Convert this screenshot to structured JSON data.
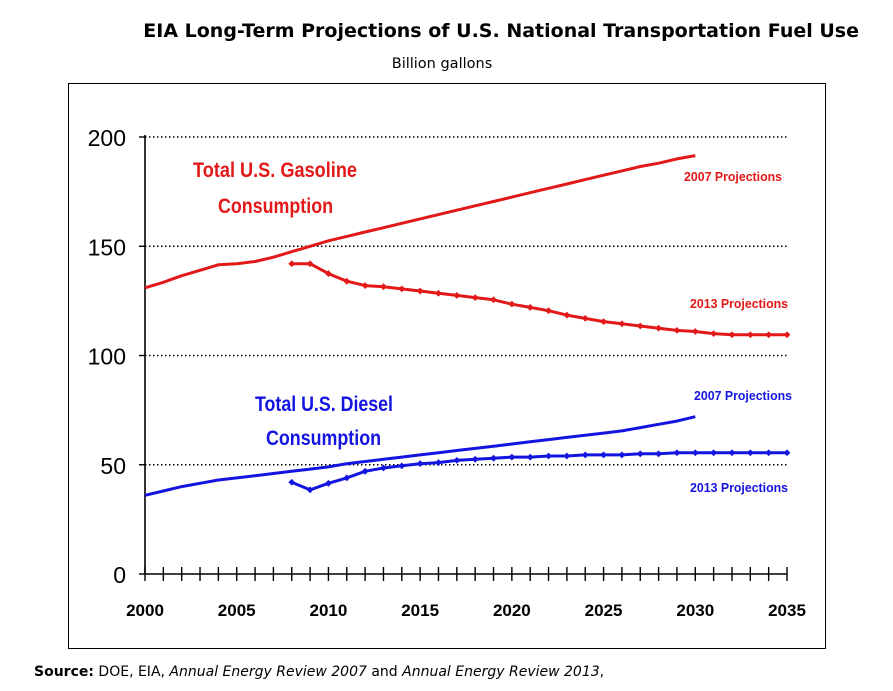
{
  "chart_data": {
    "type": "line",
    "title": "EIA Long-Term Projections of U.S. National Transportation Fuel Use",
    "subtitle": "Billion gallons",
    "xlabel": "",
    "ylabel": "",
    "xlim": [
      2000,
      2035
    ],
    "ylim": [
      0,
      200
    ],
    "x_ticks": [
      "2000",
      "2005",
      "2010",
      "2015",
      "2020",
      "2025",
      "2030",
      "2035"
    ],
    "y_ticks": [
      "0",
      "50",
      "100",
      "150",
      "200"
    ],
    "grid": "horizontal dotted",
    "colors": {
      "gasoline": "#e31818",
      "diesel": "#1414e0"
    },
    "group_labels": [
      {
        "text": [
          "Total U.S. Gasoline",
          "Consumption"
        ],
        "color": "#e31818"
      },
      {
        "text": [
          "Total U.S. Diesel",
          "Consumption"
        ],
        "color": "#1414e0"
      }
    ],
    "series": [
      {
        "name": "2007 Projections",
        "fuel": "gasoline",
        "color": "#e31818",
        "markers": false,
        "x": [
          2000,
          2001,
          2002,
          2003,
          2004,
          2005,
          2006,
          2007,
          2008,
          2009,
          2010,
          2011,
          2012,
          2013,
          2014,
          2015,
          2016,
          2017,
          2018,
          2019,
          2020,
          2021,
          2022,
          2023,
          2024,
          2025,
          2026,
          2027,
          2028,
          2029,
          2030
        ],
        "y": [
          131,
          133.5,
          136.5,
          139,
          141.5,
          142,
          143,
          145,
          147.5,
          150,
          152.5,
          154.5,
          156.5,
          158.5,
          160.5,
          162.5,
          164.5,
          166.5,
          168.5,
          170.5,
          172.5,
          174.5,
          176.5,
          178.5,
          180.5,
          182.5,
          184.5,
          186.5,
          188,
          190,
          191.5
        ]
      },
      {
        "name": "2013 Projections",
        "fuel": "gasoline",
        "color": "#e31818",
        "markers": true,
        "x": [
          2008,
          2009,
          2010,
          2011,
          2012,
          2013,
          2014,
          2015,
          2016,
          2017,
          2018,
          2019,
          2020,
          2021,
          2022,
          2023,
          2024,
          2025,
          2026,
          2027,
          2028,
          2029,
          2030,
          2031,
          2032,
          2033,
          2034,
          2035
        ],
        "y": [
          142,
          142,
          137.5,
          134,
          132,
          131.5,
          130.5,
          129.5,
          128.5,
          127.5,
          126.5,
          125.5,
          123.5,
          122,
          120.5,
          118.5,
          117,
          115.5,
          114.5,
          113.5,
          112.5,
          111.5,
          111,
          110,
          109.5,
          109.5,
          109.5,
          109.5
        ]
      },
      {
        "name": "2007 Projections",
        "fuel": "diesel",
        "color": "#1414e0",
        "markers": false,
        "x": [
          2000,
          2001,
          2002,
          2003,
          2004,
          2005,
          2006,
          2007,
          2008,
          2009,
          2010,
          2011,
          2012,
          2013,
          2014,
          2015,
          2016,
          2017,
          2018,
          2019,
          2020,
          2021,
          2022,
          2023,
          2024,
          2025,
          2026,
          2027,
          2028,
          2029,
          2030
        ],
        "y": [
          36,
          38,
          40,
          41.5,
          43,
          44,
          45,
          46,
          47,
          48,
          49,
          50.5,
          51.5,
          52.5,
          53.5,
          54.5,
          55.5,
          56.5,
          57.5,
          58.5,
          59.5,
          60.5,
          61.5,
          62.5,
          63.5,
          64.5,
          65.5,
          67,
          68.5,
          70,
          72
        ]
      },
      {
        "name": "2013 Projections",
        "fuel": "diesel",
        "color": "#1414e0",
        "markers": true,
        "x": [
          2008,
          2009,
          2010,
          2011,
          2012,
          2013,
          2014,
          2015,
          2016,
          2017,
          2018,
          2019,
          2020,
          2021,
          2022,
          2023,
          2024,
          2025,
          2026,
          2027,
          2028,
          2029,
          2030,
          2031,
          2032,
          2033,
          2034,
          2035
        ],
        "y": [
          42,
          38.5,
          41.5,
          44,
          47,
          48.5,
          49.5,
          50.5,
          51,
          52,
          52.5,
          53,
          53.5,
          53.5,
          54,
          54,
          54.5,
          54.5,
          54.5,
          55,
          55,
          55.5,
          55.5,
          55.5,
          55.5,
          55.5,
          55.5,
          55.5
        ]
      }
    ]
  },
  "source": {
    "label": "Source:",
    "text1": " DOE, EIA, ",
    "italic1": "Annual Energy Review 2007",
    "text2": " and ",
    "italic2": "Annual Energy Review 2013",
    "text3": ","
  }
}
